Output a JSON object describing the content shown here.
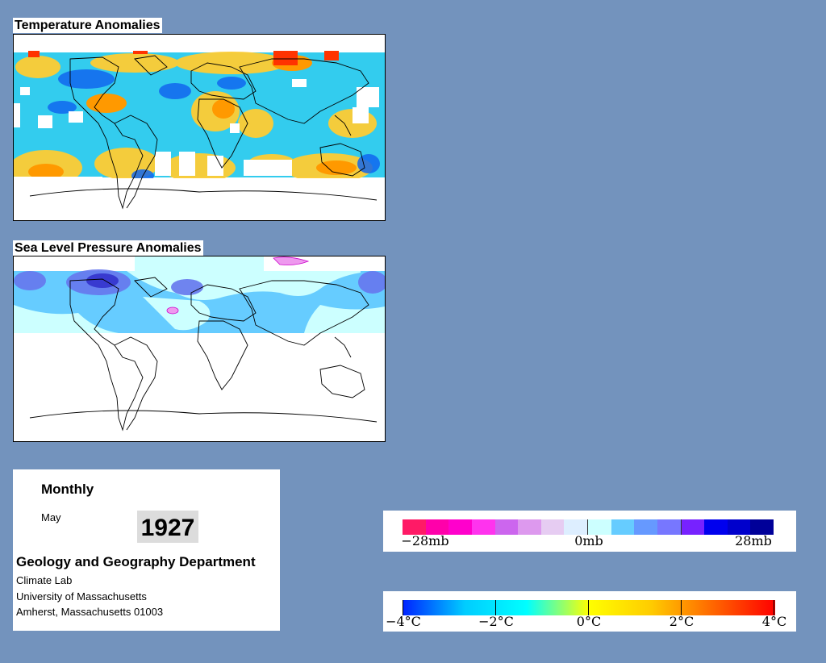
{
  "temperature_map": {
    "title": "Temperature Anomalies"
  },
  "pressure_map": {
    "title": "Sea Level Pressure Anomalies"
  },
  "info": {
    "frequency": "Monthly",
    "month": "May",
    "year": "1927",
    "department": "Geology and Geography Department",
    "lab": "Climate Lab",
    "university": "University of Massachusetts",
    "address": "Amherst, Massachusetts 01003"
  },
  "pressure_legend": {
    "labels": [
      "−28mb",
      "0mb",
      "28mb"
    ],
    "colors": [
      "#ff1a66",
      "#ff00aa",
      "#ff00cc",
      "#ff33ee",
      "#cc66ee",
      "#dd99ee",
      "#e6ccf2",
      "#ddeeff",
      "#ccffff",
      "#66ccff",
      "#6699ff",
      "#7777ff",
      "#7722ff",
      "#0000ee",
      "#0000cc",
      "#000099"
    ]
  },
  "temperature_legend": {
    "labels": [
      "−4°C",
      "−2°C",
      "0°C",
      "2°C",
      "4°C"
    ],
    "stops": [
      "#0022ff",
      "#00ccff",
      "#00ffff",
      "#ffff00",
      "#ffcc00",
      "#ff6600",
      "#ff0000"
    ]
  }
}
